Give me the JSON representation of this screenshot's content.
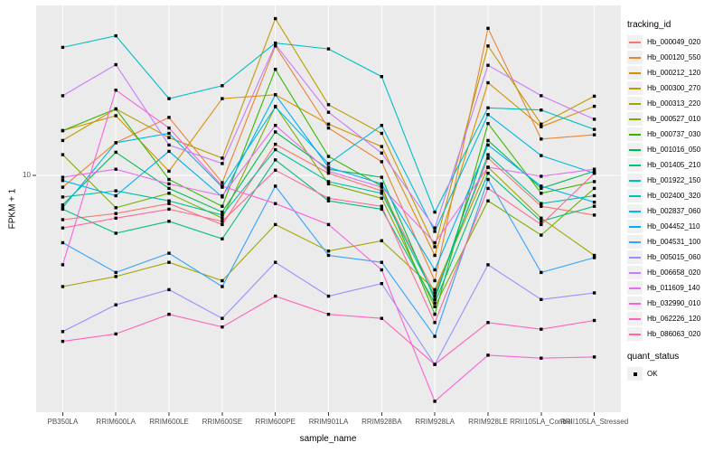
{
  "figure": {
    "y_axis_title": "FPKM + 1",
    "x_axis_title": "sample_name",
    "y_tick_label": "10",
    "legend_title": "tracking_id",
    "quant_legend_title": "quant_status",
    "quant_legend_item": "OK",
    "colors": {
      "panel_background": "#EBEBEB",
      "gridline": "#FFFFFF",
      "marker": "#000000",
      "tick_text": "#4D4D4D",
      "axis_text": "#000000",
      "legend_key_background": "#F0F0F0"
    }
  },
  "chart_data": {
    "type": "line",
    "title": "",
    "xlabel": "sample_name",
    "ylabel": "FPKM + 1",
    "y_scale": "log10",
    "y_domain": [
      1.007,
      51.8
    ],
    "y_tick_values": [
      10
    ],
    "grid": "vertical-major-and-y10",
    "legend_position": "right",
    "marker": "black-square",
    "categories": [
      "PB350LA",
      "RRIM600LA",
      "RRIM600LE",
      "RRIM600SE",
      "RRIM600PE",
      "RRIM901LA",
      "RRIM928BA",
      "RRIM928LA",
      "RRIM928LE",
      "RRII105LA_Control",
      "RRII105LA_Stressed"
    ],
    "series": [
      {
        "name": "Hb_000049_020",
        "color": "#F8766D",
        "values": [
          6.5,
          6.9,
          7.6,
          6.2,
          13.5,
          10.2,
          8.6,
          3.2,
          11.8,
          7.4,
          6.8
        ]
      },
      {
        "name": "Hb_000120_550",
        "color": "#EA8331",
        "values": [
          8.9,
          13.7,
          17.5,
          9.3,
          35,
          15.8,
          11.4,
          3.6,
          41.5,
          14.2,
          14.8
        ]
      },
      {
        "name": "Hb_000212_120",
        "color": "#D89000",
        "values": [
          15.4,
          17.8,
          10.4,
          21,
          21.8,
          16.4,
          13.2,
          4.6,
          24.5,
          16,
          19.5
        ]
      },
      {
        "name": "Hb_000300_270",
        "color": "#C09B00",
        "values": [
          14,
          19,
          14.4,
          11.8,
          45.6,
          19.8,
          15,
          5,
          35,
          16.4,
          21.5
        ]
      },
      {
        "name": "Hb_000313_220",
        "color": "#A3A500",
        "values": [
          3.4,
          3.75,
          4.3,
          3.6,
          6.2,
          4.8,
          5.3,
          3.3,
          10.8,
          6.6,
          4.6
        ]
      },
      {
        "name": "Hb_000527_010",
        "color": "#7CAE00",
        "values": [
          12.2,
          7.3,
          8.4,
          6.6,
          19.5,
          9.2,
          8,
          2.8,
          7.8,
          5.6,
          8.8
        ]
      },
      {
        "name": "Hb_000737_030",
        "color": "#39B600",
        "values": [
          15.4,
          19,
          9.6,
          7.4,
          27.9,
          12,
          9,
          2.6,
          16.5,
          8.4,
          9.4
        ]
      },
      {
        "name": "Hb_001016_050",
        "color": "#00BB4E",
        "values": [
          7.5,
          12.5,
          8.8,
          7,
          15.2,
          10.6,
          9.8,
          3,
          14,
          8.8,
          10.4
        ]
      },
      {
        "name": "Hb_001405_210",
        "color": "#00BF7D",
        "values": [
          7.2,
          5.7,
          6.4,
          5.4,
          11.6,
          7.8,
          7.2,
          2.9,
          10.2,
          6.4,
          7.4
        ]
      },
      {
        "name": "Hb_001922_150",
        "color": "#00C1A3",
        "values": [
          8.1,
          8.6,
          7.8,
          6.8,
          12.8,
          9.4,
          8.4,
          3.1,
          12.2,
          7.6,
          8.2
        ]
      },
      {
        "name": "Hb_002400_320",
        "color": "#00BFC4",
        "values": [
          34.5,
          38.6,
          21,
          23.8,
          36,
          34,
          26,
          7,
          19.2,
          18.8,
          15.6
        ]
      },
      {
        "name": "Hb_002837_060",
        "color": "#00BAE0",
        "values": [
          7.3,
          13.7,
          15,
          8.9,
          19.4,
          11.2,
          16.2,
          5.8,
          18,
          12.1,
          10.2
        ]
      },
      {
        "name": "Hb_004452_110",
        "color": "#00B0F6",
        "values": [
          9.5,
          8.2,
          12.6,
          8.1,
          21.8,
          10.8,
          9.2,
          4,
          13.4,
          9,
          7.7
        ]
      },
      {
        "name": "Hb_004531_100",
        "color": "#35A2FF",
        "values": [
          5.2,
          3.9,
          4.7,
          3.4,
          9,
          4.6,
          4.3,
          2.1,
          9.6,
          3.9,
          4.5
        ]
      },
      {
        "name": "Hb_005015_060",
        "color": "#9590FF",
        "values": [
          2.2,
          2.85,
          3.3,
          2.5,
          4.3,
          3.1,
          3.5,
          1.6,
          4.2,
          3,
          3.2
        ]
      },
      {
        "name": "Hb_006658_020",
        "color": "#C77CFF",
        "values": [
          21.6,
          29.2,
          13.4,
          11.2,
          35.5,
          18.4,
          12.4,
          6,
          29,
          21.6,
          17.2
        ]
      },
      {
        "name": "Hb_011609_140",
        "color": "#E76BF3",
        "values": [
          9.8,
          10.6,
          9.2,
          8.2,
          16.2,
          10.4,
          8.9,
          5.2,
          10.8,
          9.9,
          10.6
        ]
      },
      {
        "name": "Hb_032990_010",
        "color": "#FA62DB",
        "values": [
          4.2,
          22.8,
          15.8,
          9,
          7.6,
          6.2,
          4,
          1.12,
          1.75,
          1.7,
          1.72
        ]
      },
      {
        "name": "Hb_062226_120",
        "color": "#FF62BC",
        "values": [
          2,
          2.15,
          2.6,
          2.3,
          3.1,
          2.6,
          2.5,
          1.6,
          2.4,
          2.25,
          2.45
        ]
      },
      {
        "name": "Hb_086063_020",
        "color": "#FF6A98",
        "values": [
          6,
          6.6,
          7.2,
          6.4,
          10.5,
          8,
          7.4,
          2.4,
          8.8,
          6.2,
          10.2
        ]
      }
    ]
  }
}
